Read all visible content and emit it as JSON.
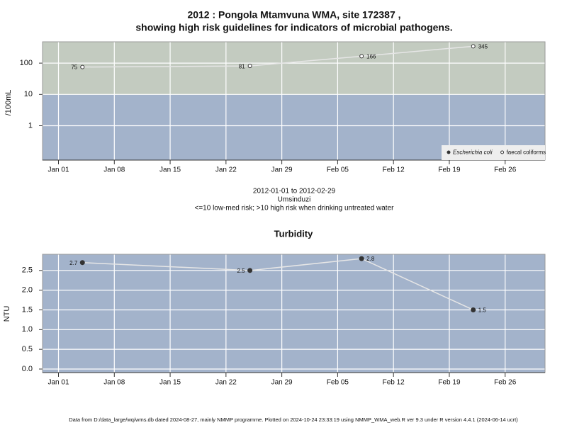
{
  "chart_data": [
    {
      "type": "line",
      "title": [
        "2012 : Pongola Mtamvuna WMA, site 172387 ,",
        "showing high risk guidelines for indicators of microbial pathogens."
      ],
      "subtitle": [
        "2012-01-01 to 2012-02-29",
        "Umsinduzi",
        "<=10 low-med risk; >10 high risk when drinking untreated water"
      ],
      "y_label": "/100mL",
      "log_scale": true,
      "x": [
        "2012-01-04",
        "2012-01-25",
        "2012-02-08",
        "2012-02-22"
      ],
      "series": [
        {
          "name": "Escherichia coli",
          "color": "#333333",
          "marker": "filled",
          "values": [
            null,
            null,
            null,
            null
          ]
        },
        {
          "name": "faecal coliforms",
          "color": "#333333",
          "marker": "open",
          "values": [
            75,
            81,
            166,
            345
          ]
        }
      ],
      "line_color": "#e6e6e6",
      "risk_threshold": 10,
      "band_colors": {
        "above": "#c3cbc0",
        "below": "#a3b3cb"
      },
      "xlim": [
        "2011-12-30",
        "2012-03-02"
      ],
      "xticks": [
        {
          "value": "2012-01-01",
          "label": "Jan 01"
        },
        {
          "value": "2012-01-08",
          "label": "Jan 08"
        },
        {
          "value": "2012-01-15",
          "label": "Jan 15"
        },
        {
          "value": "2012-01-22",
          "label": "Jan 22"
        },
        {
          "value": "2012-01-29",
          "label": "Jan 29"
        },
        {
          "value": "2012-02-05",
          "label": "Feb 05"
        },
        {
          "value": "2012-02-12",
          "label": "Feb 12"
        },
        {
          "value": "2012-02-19",
          "label": "Feb 19"
        },
        {
          "value": "2012-02-26",
          "label": "Feb 26"
        }
      ],
      "ylim": [
        0.08,
        480
      ],
      "yticks": [
        1,
        10,
        100
      ],
      "grid": true,
      "legend": "bottom-right"
    },
    {
      "type": "line",
      "title": "Turbidity",
      "y_label": "NTU",
      "log_scale": false,
      "x": [
        "2012-01-04",
        "2012-01-25",
        "2012-02-08",
        "2012-02-22"
      ],
      "series": [
        {
          "name": "Turbidity",
          "color": "#333333",
          "marker": "filled",
          "values": [
            2.7,
            2.5,
            2.8,
            1.5
          ]
        }
      ],
      "line_color": "#e6e6e6",
      "band_colors": {
        "below": "#a3b3cb"
      },
      "xlim": [
        "2011-12-30",
        "2012-03-02"
      ],
      "xticks": [
        {
          "value": "2012-01-01",
          "label": "Jan 01"
        },
        {
          "value": "2012-01-08",
          "label": "Jan 08"
        },
        {
          "value": "2012-01-15",
          "label": "Jan 15"
        },
        {
          "value": "2012-01-22",
          "label": "Jan 22"
        },
        {
          "value": "2012-01-29",
          "label": "Jan 29"
        },
        {
          "value": "2012-02-05",
          "label": "Feb 05"
        },
        {
          "value": "2012-02-12",
          "label": "Feb 12"
        },
        {
          "value": "2012-02-19",
          "label": "Feb 19"
        },
        {
          "value": "2012-02-26",
          "label": "Feb 26"
        }
      ],
      "ylim": [
        -0.09,
        2.91
      ],
      "yticks": [
        {
          "value": 0,
          "label": "0.0"
        },
        0.5,
        {
          "value": 1,
          "label": "1.0"
        },
        1.5,
        {
          "value": 2,
          "label": "2.0"
        },
        2.5
      ],
      "grid": true
    }
  ],
  "footer": "Data from D:/data_large/wq/wms.db dated 2024-08-27, mainly NMMP programme. Plotted on 2024-10-24 23:33:19 using NMMP_WMA_web.R ver 9.3 under R version 4.4.1 (2024-06-14 ucrt)"
}
